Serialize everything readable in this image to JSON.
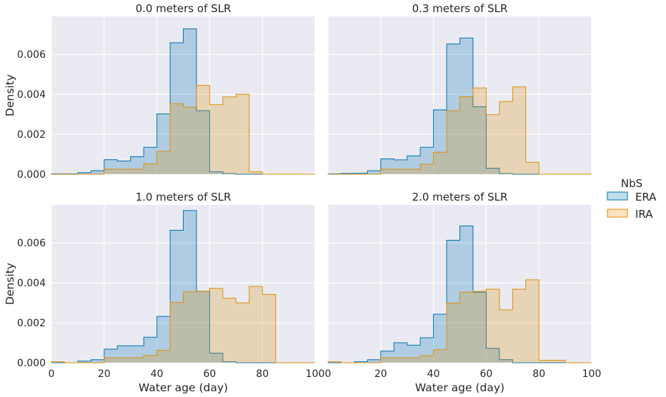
{
  "figure": {
    "legend": {
      "title": "NbS",
      "placement": "right"
    },
    "colors": {
      "background": "#eaeaf2",
      "grid": "#ffffff",
      "ERA_edge": "#0173b2",
      "ERA_fill": "#0173b2",
      "IRA_edge": "#de8f05",
      "IRA_fill": "#de8f05"
    }
  },
  "chart_data": [
    {
      "type": "histogram",
      "title": "0.0 meters of SLR",
      "xlabel": "",
      "ylabel": "Density",
      "xlim": [
        0,
        100
      ],
      "ylim": [
        0,
        0.0079
      ],
      "xticks": [
        "0",
        "20",
        "40",
        "60",
        "80",
        "100"
      ],
      "yticks": [
        "0.000",
        "0.002",
        "0.004",
        "0.006"
      ],
      "grid": true,
      "bin_edges": [
        0,
        5,
        10,
        15,
        20,
        25,
        30,
        35,
        40,
        45,
        50,
        55,
        60,
        65,
        70,
        75,
        80,
        85,
        90,
        95,
        100
      ],
      "series": [
        {
          "name": "ERA",
          "values": [
            2e-05,
            2e-05,
            8e-05,
            0.00018,
            0.00073,
            0.00066,
            0.00088,
            0.00135,
            0.00302,
            0.00658,
            0.00728,
            0.00318,
            0.00012,
            3e-05,
            0,
            0,
            0,
            0,
            0,
            0
          ]
        },
        {
          "name": "IRA",
          "values": [
            0,
            0,
            0,
            0,
            0.00025,
            0.00025,
            0.00025,
            0.00052,
            0.00115,
            0.00353,
            0.00336,
            0.00445,
            0.00348,
            0.00387,
            0.004,
            0.00012,
            0,
            0,
            0,
            0
          ]
        }
      ]
    },
    {
      "type": "histogram",
      "title": "0.3 meters of SLR",
      "xlabel": "",
      "ylabel": "",
      "xlim": [
        0,
        100
      ],
      "ylim": [
        0,
        0.0079
      ],
      "xticks": [
        "0",
        "20",
        "40",
        "60",
        "80",
        "100"
      ],
      "yticks": [
        "0.000",
        "0.002",
        "0.004",
        "0.006"
      ],
      "grid": true,
      "bin_edges": [
        0,
        5,
        10,
        15,
        20,
        25,
        30,
        35,
        40,
        45,
        50,
        55,
        60,
        65,
        70,
        75,
        80,
        85,
        90,
        95,
        100
      ],
      "series": [
        {
          "name": "ERA",
          "values": [
            2e-05,
            4e-05,
            5e-05,
            0.00018,
            0.00077,
            0.00072,
            0.00092,
            0.00135,
            0.00322,
            0.00652,
            0.00682,
            0.00338,
            0.0003,
            3e-05,
            0,
            0,
            0,
            0,
            0,
            0
          ]
        },
        {
          "name": "IRA",
          "values": [
            0,
            0,
            0,
            0,
            0.00025,
            0.00025,
            0.00025,
            0.0005,
            0.0011,
            0.00318,
            0.00388,
            0.00432,
            0.00298,
            0.00364,
            0.00437,
            0.0006,
            0,
            0,
            0,
            0
          ]
        }
      ]
    },
    {
      "type": "histogram",
      "title": "1.0 meters of SLR",
      "xlabel": "Water age (day)",
      "ylabel": "Density",
      "xlim": [
        0,
        100
      ],
      "ylim": [
        0,
        0.0079
      ],
      "xticks": [
        "0",
        "20",
        "40",
        "60",
        "80",
        "100"
      ],
      "yticks": [
        "0.000",
        "0.002",
        "0.004",
        "0.006"
      ],
      "grid": true,
      "bin_edges": [
        0,
        5,
        10,
        15,
        20,
        25,
        30,
        35,
        40,
        45,
        50,
        55,
        60,
        65,
        70,
        75,
        80,
        85,
        90,
        95,
        100
      ],
      "series": [
        {
          "name": "ERA",
          "values": [
            0,
            0,
            8e-05,
            0.00015,
            0.00068,
            0.00085,
            0.00085,
            0.00128,
            0.00232,
            0.00663,
            0.00762,
            0.00358,
            0.00048,
            5e-05,
            0,
            0,
            0,
            0,
            0,
            0
          ]
        },
        {
          "name": "IRA",
          "values": [
            5e-05,
            0,
            0,
            0,
            0.00025,
            0.00025,
            0.00025,
            0.00036,
            0.00062,
            0.00302,
            0.00355,
            0.00358,
            0.00372,
            0.00323,
            0.003,
            0.00382,
            0.00342,
            0,
            0,
            0
          ]
        }
      ]
    },
    {
      "type": "histogram",
      "title": "2.0 meters of SLR",
      "xlabel": "Water age (day)",
      "ylabel": "",
      "xlim": [
        0,
        100
      ],
      "ylim": [
        0,
        0.0079
      ],
      "xticks": [
        "0",
        "20",
        "40",
        "60",
        "80",
        "100"
      ],
      "yticks": [
        "0.000",
        "0.002",
        "0.004",
        "0.006"
      ],
      "grid": true,
      "bin_edges": [
        0,
        5,
        10,
        15,
        20,
        25,
        30,
        35,
        40,
        45,
        50,
        55,
        60,
        65,
        70,
        75,
        80,
        85,
        90,
        95,
        100
      ],
      "series": [
        {
          "name": "ERA",
          "values": [
            0,
            0,
            5e-05,
            0.00015,
            0.00058,
            0.001,
            0.00088,
            0.00125,
            0.00243,
            0.00613,
            0.00685,
            0.00353,
            0.00072,
            0.00015,
            0,
            0,
            0,
            0,
            0,
            0
          ]
        },
        {
          "name": "IRA",
          "values": [
            5e-05,
            0,
            0,
            0,
            0.00025,
            0.00025,
            0.00025,
            0.00035,
            0.00065,
            0.00298,
            0.00353,
            0.00358,
            0.00368,
            0.00265,
            0.00368,
            0.00415,
            0.00012,
            0.00012,
            0,
            0
          ]
        }
      ]
    }
  ]
}
